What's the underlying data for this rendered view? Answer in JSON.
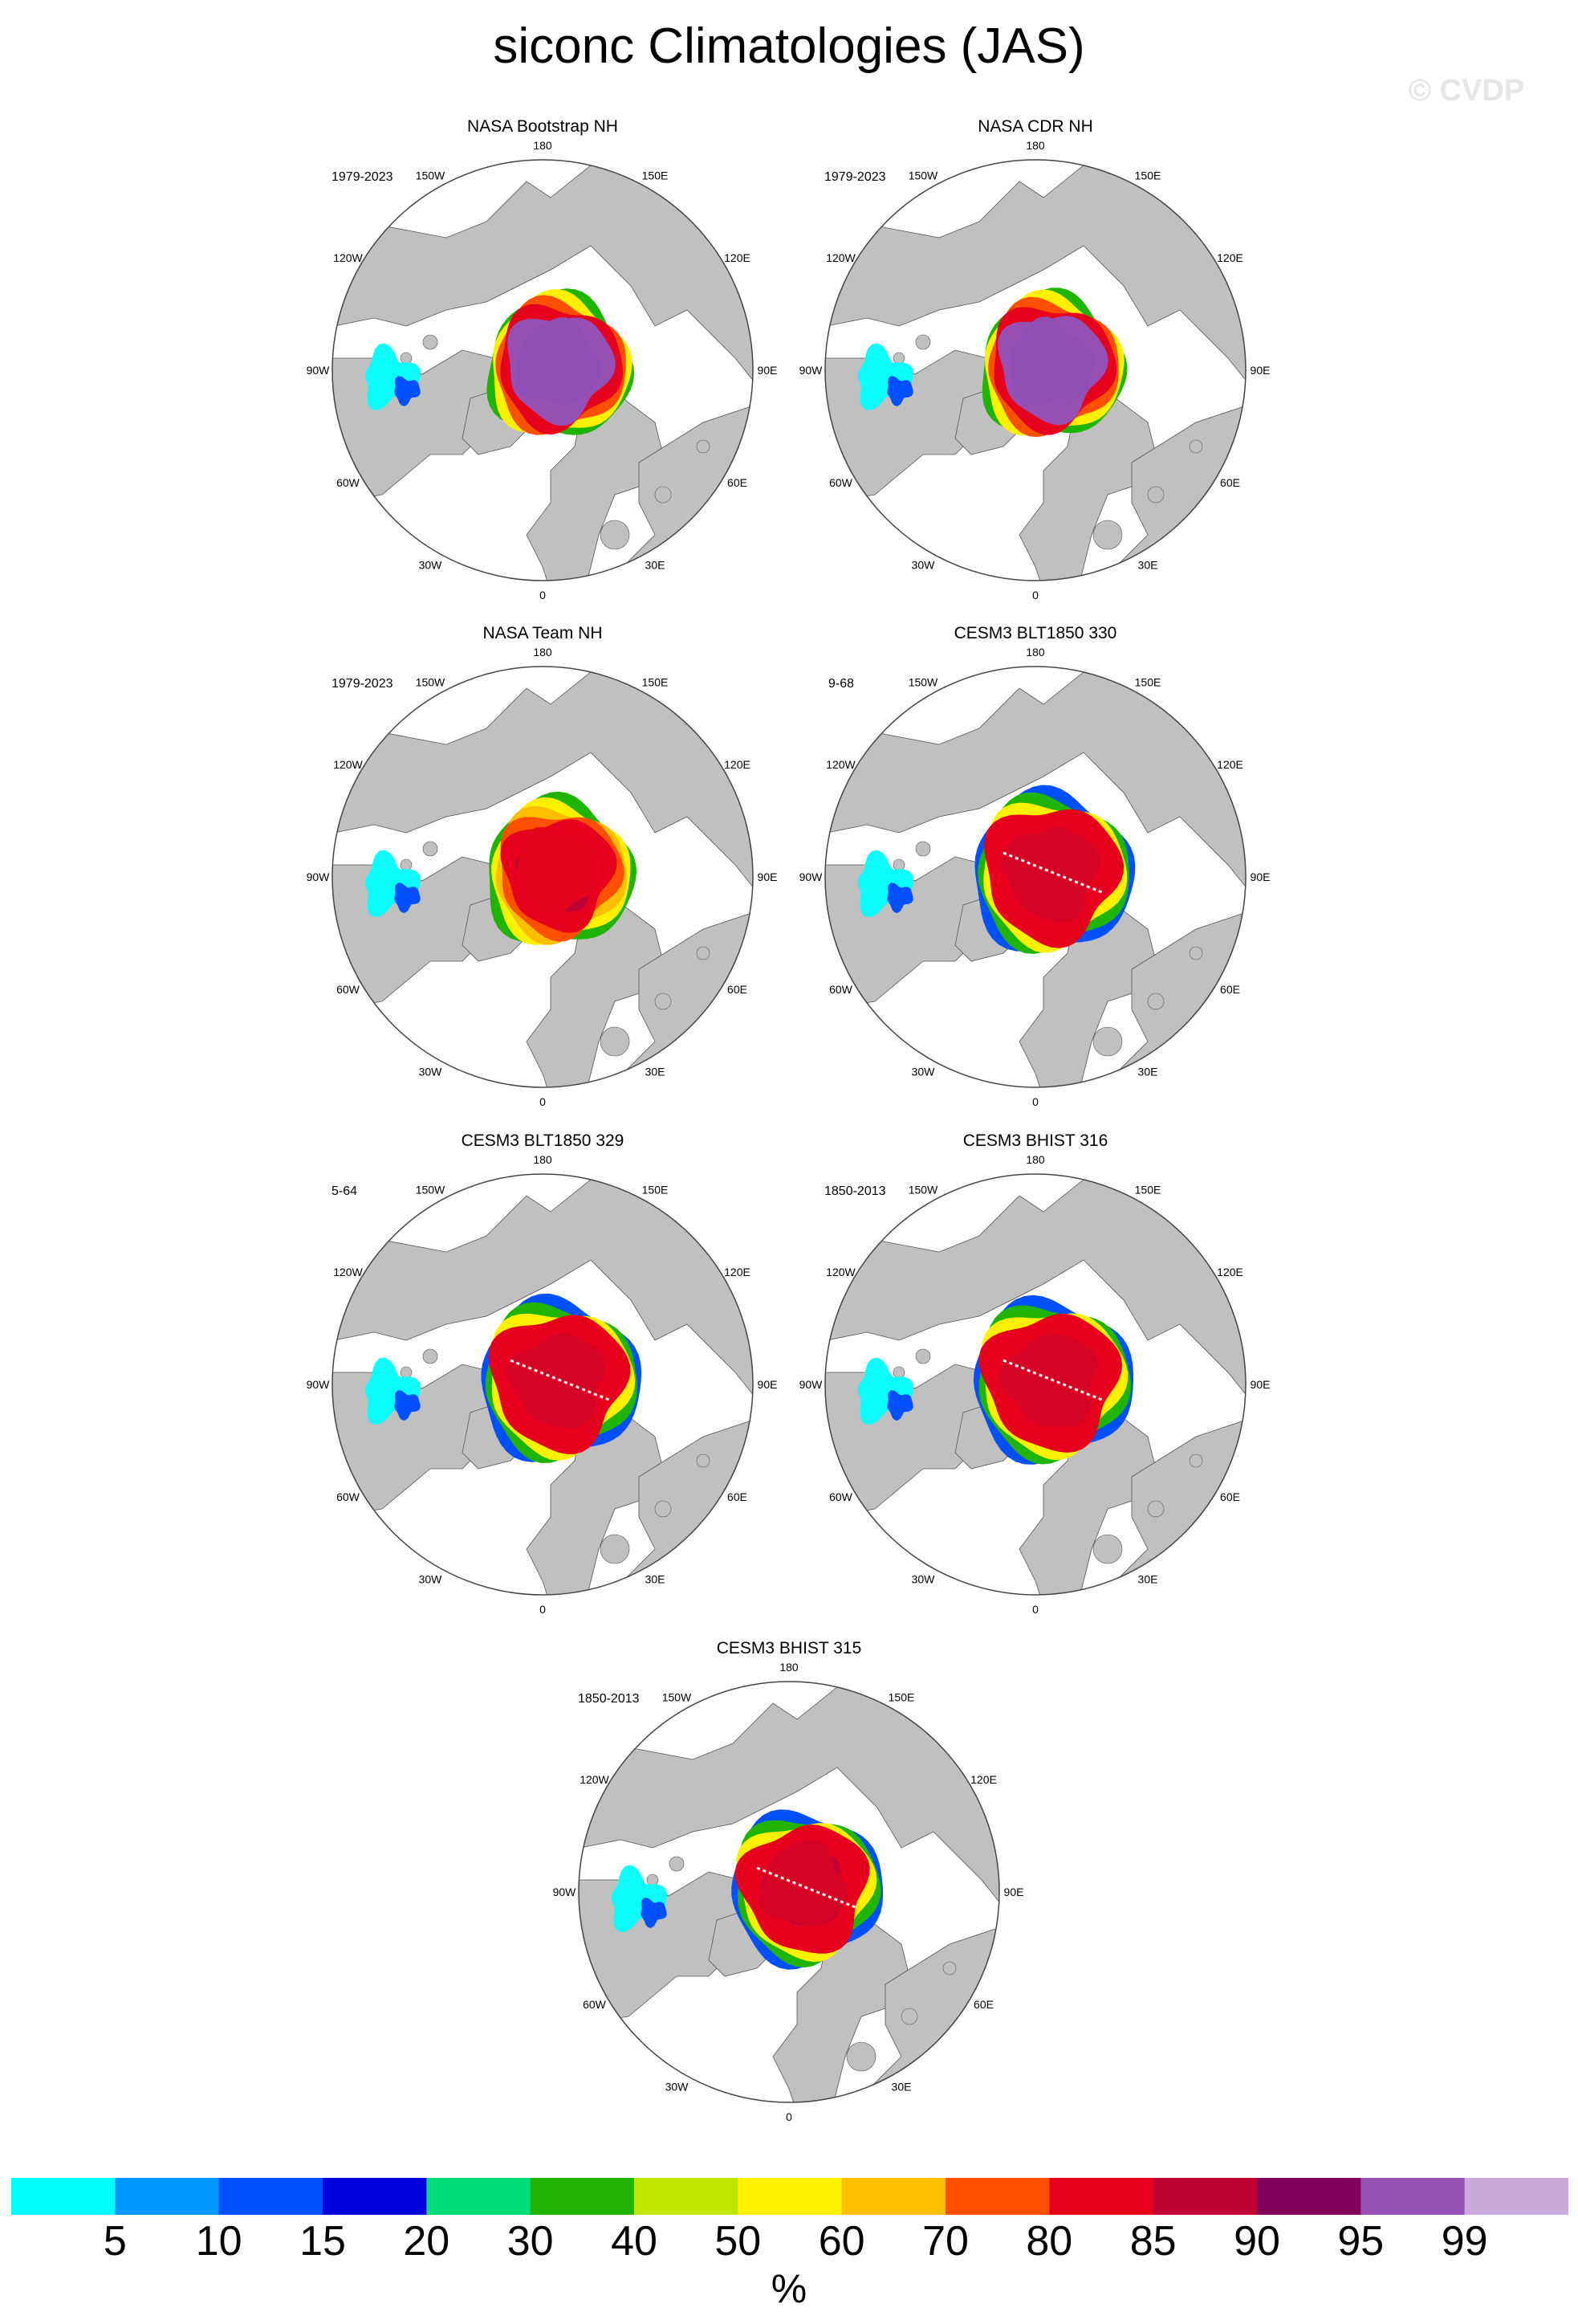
{
  "title": "siconc Climatologies (JAS)",
  "watermark": "© CVDP",
  "lon_labels": [
    "180",
    "150E",
    "120E",
    "90E",
    "60E",
    "30E",
    "0",
    "30W",
    "60W",
    "90W",
    "120W",
    "150W"
  ],
  "panels": [
    {
      "title": "NASA Bootstrap NH",
      "period": "1979-2023",
      "center_color": "#8E4EB6",
      "has_dashed_line": false,
      "variant": 0
    },
    {
      "title": "NASA CDR NH",
      "period": "1979-2023",
      "center_color": "#8E4EB6",
      "has_dashed_line": false,
      "variant": 0
    },
    {
      "title": "NASA Team NH",
      "period": "1979-2023",
      "center_color": "#E4041D",
      "has_dashed_line": false,
      "variant": 1
    },
    {
      "title": "CESM3 BLT1850 330",
      "period": "9-68",
      "center_color": "#D50424",
      "has_dashed_line": true,
      "variant": 2
    },
    {
      "title": "CESM3 BLT1850 329",
      "period": "5-64",
      "center_color": "#D50424",
      "has_dashed_line": true,
      "variant": 2
    },
    {
      "title": "CESM3 BHIST 316",
      "period": "1850-2013",
      "center_color": "#D50424",
      "has_dashed_line": true,
      "variant": 2
    },
    {
      "title": "CESM3 BHIST 315",
      "period": "1850-2013",
      "center_color": "#D50424",
      "has_dashed_line": true,
      "variant": 3
    }
  ],
  "colorbar": {
    "units": "%",
    "ticks": [
      "5",
      "10",
      "15",
      "20",
      "30",
      "40",
      "50",
      "60",
      "70",
      "80",
      "85",
      "90",
      "95",
      "99"
    ],
    "colors": [
      "#00FFFF",
      "#0096FF",
      "#0050FF",
      "#0000DC",
      "#00DC78",
      "#1EB400",
      "#BEE600",
      "#FFF000",
      "#FFBE00",
      "#FF5000",
      "#E6001E",
      "#BE0032",
      "#82005A",
      "#9650B4",
      "#C8AADC"
    ]
  }
}
